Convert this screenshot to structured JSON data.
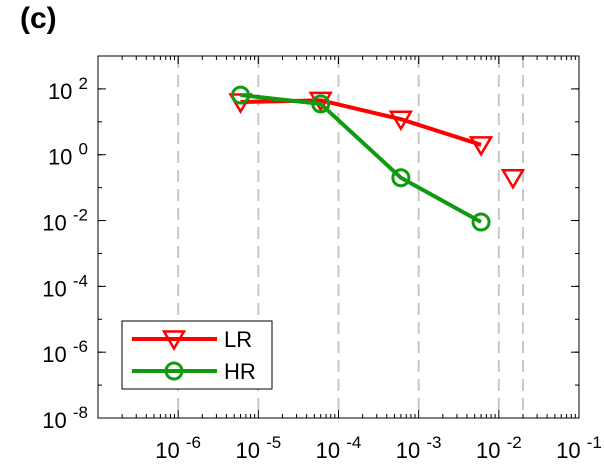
{
  "panel_label": "(c)",
  "chart_data": {
    "type": "line",
    "title": "",
    "xlabel": "",
    "ylabel": "",
    "xscale": "log",
    "yscale": "log",
    "xlim": [
      1e-07,
      0.1
    ],
    "ylim": [
      1e-08,
      1000
    ],
    "grid": "vertical dashed lines at selected x positions",
    "grid_x": [
      1e-06,
      1e-05,
      0.0001,
      0.001,
      0.01,
      0.02
    ],
    "x_ticks": [
      {
        "base": "10",
        "exp": "-6",
        "value": 1e-06
      },
      {
        "base": "10",
        "exp": "-5",
        "value": 1e-05
      },
      {
        "base": "10",
        "exp": "-4",
        "value": 0.0001
      },
      {
        "base": "10",
        "exp": "-3",
        "value": 0.001
      },
      {
        "base": "10",
        "exp": "-2",
        "value": 0.01
      },
      {
        "base": "10",
        "exp": "-1",
        "value": 0.1
      }
    ],
    "y_ticks": [
      {
        "base": "10",
        "exp": "2",
        "value": 100
      },
      {
        "base": "10",
        "exp": "0",
        "value": 1
      },
      {
        "base": "10",
        "exp": "-2",
        "value": 0.01
      },
      {
        "base": "10",
        "exp": "-4",
        "value": 0.0001
      },
      {
        "base": "10",
        "exp": "-6",
        "value": 1e-06
      },
      {
        "base": "10",
        "exp": "-8",
        "value": 1e-08
      }
    ],
    "legend_position": "bottom-left",
    "series": [
      {
        "name": "LR",
        "color": "#ff0000",
        "marker": "triangle-down",
        "x": [
          6e-06,
          6e-05,
          0.0006,
          0.006
        ],
        "y": [
          40,
          45,
          12,
          2
        ]
      },
      {
        "name": "LR (unconnected point)",
        "color": "#ff0000",
        "marker": "triangle-down",
        "line": false,
        "x": [
          0.015
        ],
        "y": [
          0.2
        ]
      },
      {
        "name": "HR",
        "color": "#119911",
        "marker": "circle",
        "x": [
          6e-06,
          6e-05,
          0.0006,
          0.006
        ],
        "y": [
          65,
          35,
          0.2,
          0.009
        ]
      }
    ],
    "legend": [
      {
        "label": "LR",
        "color": "#ff0000",
        "marker": "triangle-down"
      },
      {
        "label": "HR",
        "color": "#119911",
        "marker": "circle"
      }
    ]
  }
}
